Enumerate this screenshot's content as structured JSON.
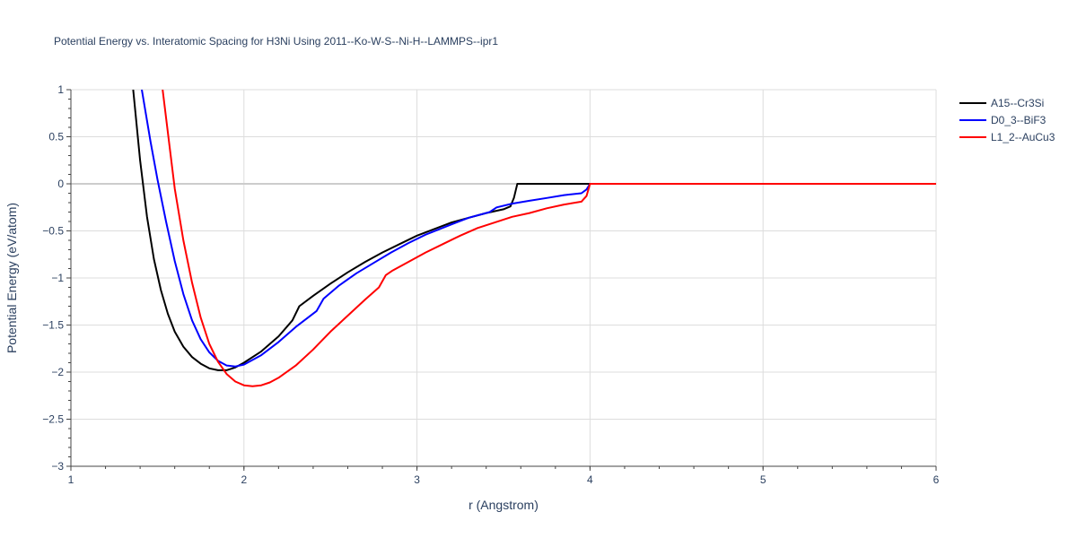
{
  "chart_data": {
    "type": "line",
    "title": "Potential Energy vs. Interatomic Spacing for H3Ni Using 2011--Ko-W-S--Ni-H--LAMMPS--ipr1",
    "xlabel": "r (Angstrom)",
    "ylabel": "Potential Energy (eV/atom)",
    "xlim": [
      1,
      6
    ],
    "ylim": [
      -3,
      1
    ],
    "xticks": [
      1,
      2,
      3,
      4,
      5,
      6
    ],
    "xtick_labels": [
      "1",
      "2",
      "3",
      "4",
      "5",
      "6"
    ],
    "yticks": [
      1,
      0.5,
      0,
      -0.5,
      -1,
      -1.5,
      -2,
      -2.5,
      -3
    ],
    "ytick_labels": [
      "1",
      "0.5",
      "0",
      "−0.5",
      "−1",
      "−1.5",
      "−2",
      "−2.5",
      "−3"
    ],
    "grid": true,
    "legend_position": "top-right",
    "series": [
      {
        "name": "A15--Cr3Si",
        "color": "#000000",
        "x": [
          1.36,
          1.4,
          1.44,
          1.48,
          1.52,
          1.56,
          1.6,
          1.65,
          1.7,
          1.75,
          1.8,
          1.85,
          1.9,
          1.95,
          2.0,
          2.1,
          2.2,
          2.28,
          2.32,
          2.4,
          2.5,
          2.6,
          2.7,
          2.8,
          2.9,
          3.0,
          3.1,
          3.2,
          3.3,
          3.4,
          3.5,
          3.54,
          3.56,
          3.58,
          3.6,
          3.7,
          3.8,
          3.9,
          4.0,
          5.0,
          6.0
        ],
        "y": [
          1.0,
          0.25,
          -0.35,
          -0.8,
          -1.13,
          -1.38,
          -1.57,
          -1.73,
          -1.84,
          -1.91,
          -1.96,
          -1.98,
          -1.98,
          -1.95,
          -1.9,
          -1.78,
          -1.62,
          -1.45,
          -1.3,
          -1.19,
          -1.06,
          -0.94,
          -0.83,
          -0.73,
          -0.64,
          -0.55,
          -0.48,
          -0.41,
          -0.36,
          -0.31,
          -0.27,
          -0.24,
          -0.15,
          0.0,
          0.0,
          0.0,
          0.0,
          0.0,
          0.0,
          0.0,
          0.0
        ]
      },
      {
        "name": "D0_3--BiF3",
        "color": "#0000ff",
        "x": [
          1.41,
          1.46,
          1.5,
          1.55,
          1.6,
          1.65,
          1.7,
          1.75,
          1.8,
          1.85,
          1.9,
          1.95,
          2.0,
          2.1,
          2.2,
          2.3,
          2.42,
          2.46,
          2.55,
          2.65,
          2.75,
          2.85,
          2.95,
          3.05,
          3.2,
          3.3,
          3.42,
          3.46,
          3.55,
          3.65,
          3.75,
          3.85,
          3.95,
          3.98,
          4.0,
          5.0,
          6.0
        ],
        "y": [
          1.0,
          0.45,
          0.05,
          -0.4,
          -0.82,
          -1.17,
          -1.45,
          -1.65,
          -1.79,
          -1.88,
          -1.93,
          -1.94,
          -1.92,
          -1.82,
          -1.68,
          -1.52,
          -1.35,
          -1.22,
          -1.08,
          -0.95,
          -0.84,
          -0.73,
          -0.63,
          -0.54,
          -0.43,
          -0.36,
          -0.3,
          -0.25,
          -0.21,
          -0.18,
          -0.15,
          -0.12,
          -0.1,
          -0.06,
          0.0,
          0.0,
          0.0
        ]
      },
      {
        "name": "L1_2--AuCu3",
        "color": "#ff0000",
        "x": [
          1.53,
          1.57,
          1.6,
          1.65,
          1.7,
          1.75,
          1.8,
          1.85,
          1.9,
          1.95,
          2.0,
          2.05,
          2.1,
          2.15,
          2.2,
          2.3,
          2.4,
          2.5,
          2.6,
          2.7,
          2.78,
          2.82,
          2.86,
          2.95,
          3.05,
          3.15,
          3.25,
          3.35,
          3.45,
          3.55,
          3.65,
          3.75,
          3.85,
          3.95,
          3.98,
          4.0,
          5.0,
          6.0
        ],
        "y": [
          1.0,
          0.4,
          -0.05,
          -0.6,
          -1.05,
          -1.42,
          -1.7,
          -1.89,
          -2.02,
          -2.1,
          -2.14,
          -2.15,
          -2.14,
          -2.11,
          -2.06,
          -1.93,
          -1.76,
          -1.57,
          -1.4,
          -1.23,
          -1.1,
          -0.97,
          -0.92,
          -0.83,
          -0.73,
          -0.64,
          -0.55,
          -0.47,
          -0.41,
          -0.35,
          -0.31,
          -0.26,
          -0.22,
          -0.19,
          -0.13,
          0.0,
          0.0,
          0.0
        ]
      }
    ]
  }
}
